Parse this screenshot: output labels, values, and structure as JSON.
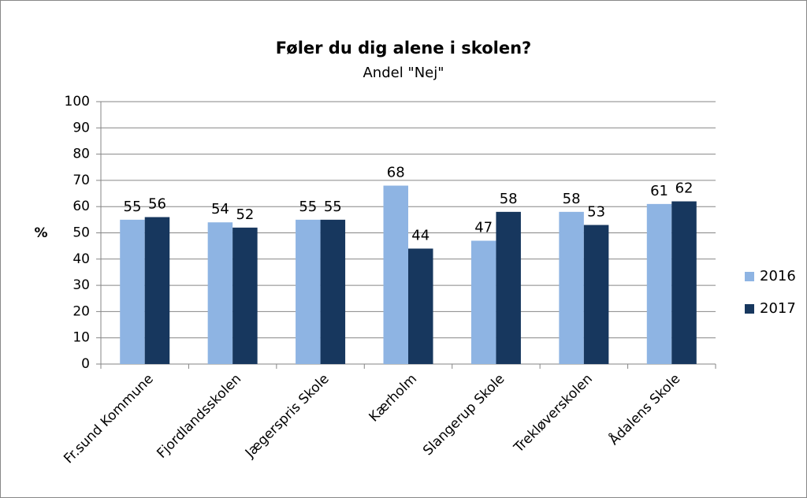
{
  "chart_data": {
    "type": "bar",
    "title": "Føler du dig alene i skolen?",
    "subtitle": "Andel \"Nej\"",
    "y_label": "%",
    "categories": [
      "Fr.sund Kommune",
      "Fjordlandsskolen",
      "Jægerspris Skole",
      "Kærholm",
      "Slangerup Skole",
      "Trekløverskolen",
      "Ådalens Skole"
    ],
    "series": [
      {
        "name": "2016",
        "color": "#8eb4e3",
        "values": [
          55,
          54,
          55,
          68,
          47,
          58,
          61
        ]
      },
      {
        "name": "2017",
        "color": "#17375e",
        "values": [
          56,
          52,
          55,
          44,
          58,
          53,
          62
        ]
      }
    ],
    "ylim": [
      0,
      100
    ],
    "yticks": [
      0,
      10,
      20,
      30,
      40,
      50,
      60,
      70,
      80,
      90,
      100
    ],
    "grid": true,
    "legend": "right"
  }
}
